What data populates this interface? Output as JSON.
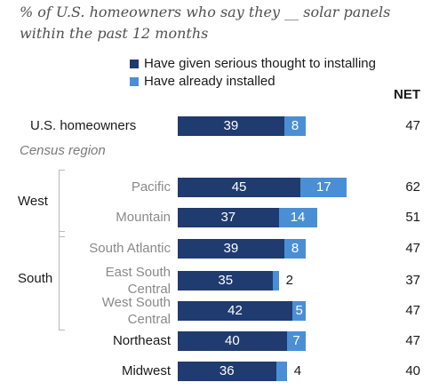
{
  "chart_data": {
    "type": "bar",
    "stacked": true,
    "orientation": "horizontal",
    "title": "% of U.S. homeowners who say they __ solar panels within the past 12 months",
    "net_header": "NET",
    "region_heading": "Census region",
    "categories": [
      "U.S. homeowners",
      "Pacific",
      "Mountain",
      "South Atlantic",
      "East South Central",
      "West South Central",
      "Northeast",
      "Midwest"
    ],
    "groups": [
      {
        "label": "West",
        "members": [
          "Pacific",
          "Mountain"
        ]
      },
      {
        "label": "South",
        "members": [
          "South Atlantic",
          "East South Central",
          "West South Central"
        ]
      }
    ],
    "series": [
      {
        "name": "Have given serious thought to installing",
        "color": "#1f3b6f",
        "values": [
          39,
          45,
          37,
          39,
          35,
          42,
          40,
          36
        ]
      },
      {
        "name": "Have already installed",
        "color": "#4a8fd6",
        "values": [
          8,
          17,
          14,
          8,
          2,
          5,
          7,
          4
        ]
      }
    ],
    "net": [
      47,
      62,
      51,
      47,
      37,
      47,
      47,
      40
    ],
    "legend_position": "top",
    "grid": false
  }
}
